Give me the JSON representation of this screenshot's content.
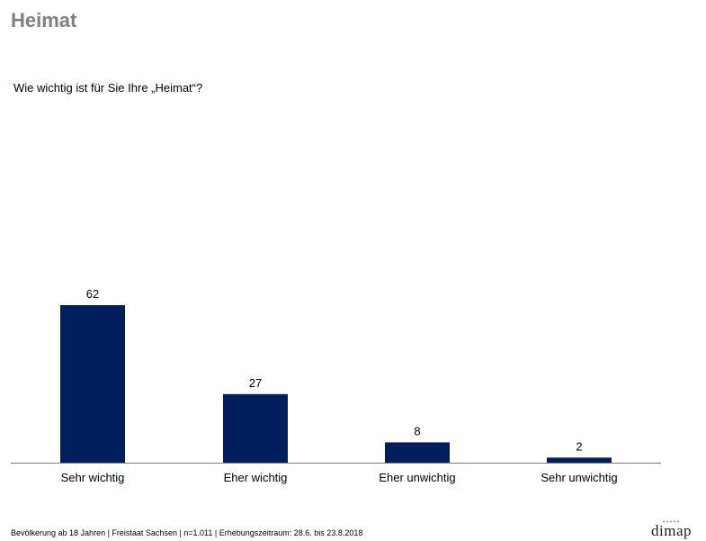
{
  "header": {
    "title": "Heimat",
    "question": "Wie wichtig ist für Sie Ihre „Heimat“?"
  },
  "chart_data": {
    "type": "bar",
    "categories": [
      "Sehr wichtig",
      "Eher wichtig",
      "Eher unwichtig",
      "Sehr unwichtig"
    ],
    "values": [
      62,
      27,
      8,
      2
    ],
    "ylim": [
      0,
      62
    ],
    "grid": false,
    "bar_color": "#001f5c"
  },
  "footer": {
    "note": "Bevölkerung ab 18 Jahren | Freistaat Sachsen | n=1.011 | Erhebungszeitraum: 28.6. bis 23.8.2018",
    "logo": "dimap"
  }
}
